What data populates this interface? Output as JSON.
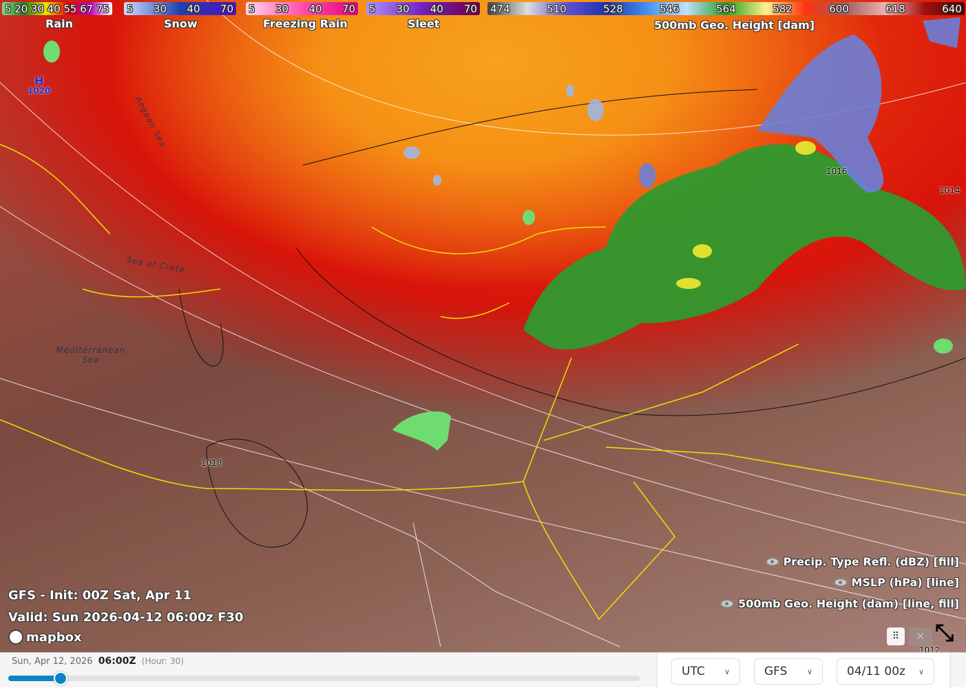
{
  "legend": {
    "rain": {
      "ticks": [
        "5",
        "20",
        "30",
        "40",
        "55",
        "67",
        "75"
      ],
      "label": "Rain"
    },
    "snow": {
      "ticks": [
        "5",
        "30",
        "40",
        "70"
      ],
      "label": "Snow"
    },
    "freezing_rain": {
      "ticks": [
        "5",
        "30",
        "40",
        "70"
      ],
      "label": "Freezing Rain"
    },
    "sleet": {
      "ticks": [
        "5",
        "30",
        "40",
        "70"
      ],
      "label": "Sleet"
    },
    "height": {
      "ticks": [
        "474",
        "510",
        "528",
        "546",
        "564",
        "582",
        "600",
        "618",
        "640"
      ],
      "label": "500mb Geo. Height [dam]"
    }
  },
  "map": {
    "seas": [
      "Aegean Sea",
      "Sea of Crete",
      "Mediterranean Sea"
    ],
    "pressure_center": {
      "letter": "H",
      "value": "1020"
    },
    "isobars": [
      "1016",
      "1014",
      "1018",
      "1012"
    ],
    "info_line1": "GFS - Init: 00Z Sat, Apr 11",
    "info_line2": "Valid: Sun 2026-04-12 06:00z F30",
    "attribution": "mapbox"
  },
  "layers": [
    "Precip. Type Refl. (dBZ) [fill]",
    "MSLP (hPa) [line]",
    "500mb Geo. Height (dam) [line, fill]"
  ],
  "timeline": {
    "date": "Sun, Apr 12, 2026",
    "time": "06:00Z",
    "hour": "(Hour: 30)",
    "progress": 0.083
  },
  "selects": {
    "timezone": "UTC",
    "model": "GFS",
    "run": "04/11 00z"
  },
  "colors": {
    "slider": "#0a84c6",
    "coast": "#f0e000"
  }
}
